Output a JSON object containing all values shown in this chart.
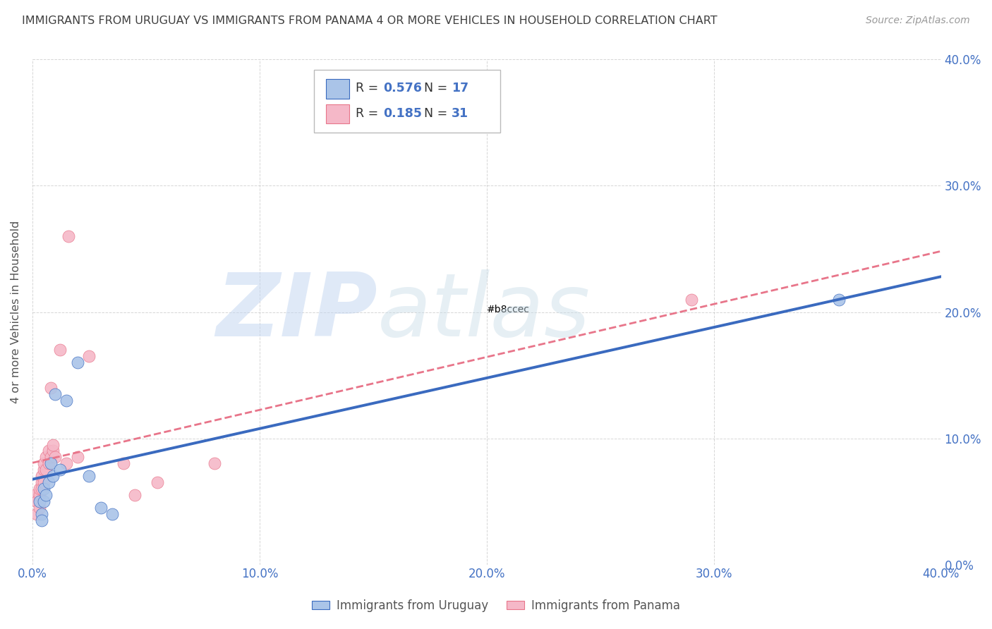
{
  "title": "IMMIGRANTS FROM URUGUAY VS IMMIGRANTS FROM PANAMA 4 OR MORE VEHICLES IN HOUSEHOLD CORRELATION CHART",
  "source": "Source: ZipAtlas.com",
  "ylabel": "4 or more Vehicles in Household",
  "xlim": [
    0.0,
    0.4
  ],
  "ylim": [
    0.0,
    0.4
  ],
  "xtick_vals": [
    0.0,
    0.1,
    0.2,
    0.3,
    0.4
  ],
  "ytick_vals": [
    0.0,
    0.1,
    0.2,
    0.3,
    0.4
  ],
  "legend_items": [
    {
      "label": "Immigrants from Uruguay",
      "color": "#aac4e8",
      "R": "0.576",
      "N": 17
    },
    {
      "label": "Immigrants from Panama",
      "color": "#f5b8c8",
      "R": "0.185",
      "N": 31
    }
  ],
  "uruguay_scatter": [
    [
      0.003,
      0.05
    ],
    [
      0.004,
      0.04
    ],
    [
      0.004,
      0.035
    ],
    [
      0.005,
      0.06
    ],
    [
      0.005,
      0.05
    ],
    [
      0.006,
      0.055
    ],
    [
      0.007,
      0.065
    ],
    [
      0.008,
      0.08
    ],
    [
      0.009,
      0.07
    ],
    [
      0.01,
      0.135
    ],
    [
      0.012,
      0.075
    ],
    [
      0.015,
      0.13
    ],
    [
      0.02,
      0.16
    ],
    [
      0.025,
      0.07
    ],
    [
      0.03,
      0.045
    ],
    [
      0.035,
      0.04
    ],
    [
      0.355,
      0.21
    ]
  ],
  "panama_scatter": [
    [
      0.001,
      0.055
    ],
    [
      0.002,
      0.04
    ],
    [
      0.002,
      0.05
    ],
    [
      0.003,
      0.055
    ],
    [
      0.003,
      0.045
    ],
    [
      0.003,
      0.06
    ],
    [
      0.004,
      0.065
    ],
    [
      0.004,
      0.06
    ],
    [
      0.004,
      0.07
    ],
    [
      0.005,
      0.075
    ],
    [
      0.005,
      0.08
    ],
    [
      0.005,
      0.065
    ],
    [
      0.006,
      0.075
    ],
    [
      0.006,
      0.085
    ],
    [
      0.007,
      0.08
    ],
    [
      0.007,
      0.09
    ],
    [
      0.008,
      0.14
    ],
    [
      0.008,
      0.085
    ],
    [
      0.009,
      0.09
    ],
    [
      0.009,
      0.095
    ],
    [
      0.01,
      0.085
    ],
    [
      0.012,
      0.17
    ],
    [
      0.015,
      0.08
    ],
    [
      0.016,
      0.26
    ],
    [
      0.02,
      0.085
    ],
    [
      0.025,
      0.165
    ],
    [
      0.04,
      0.08
    ],
    [
      0.045,
      0.055
    ],
    [
      0.055,
      0.065
    ],
    [
      0.08,
      0.08
    ],
    [
      0.29,
      0.21
    ]
  ],
  "uruguay_line_color": "#3a6abf",
  "panama_line_color": "#e8758a",
  "watermark_zip_color": "#b8ccec",
  "watermark_atlas_color": "#c8d8e8",
  "background_color": "#ffffff",
  "grid_color": "#cccccc",
  "title_color": "#404040",
  "tick_label_color": "#4472c4",
  "r_n_color": "#4472c4"
}
